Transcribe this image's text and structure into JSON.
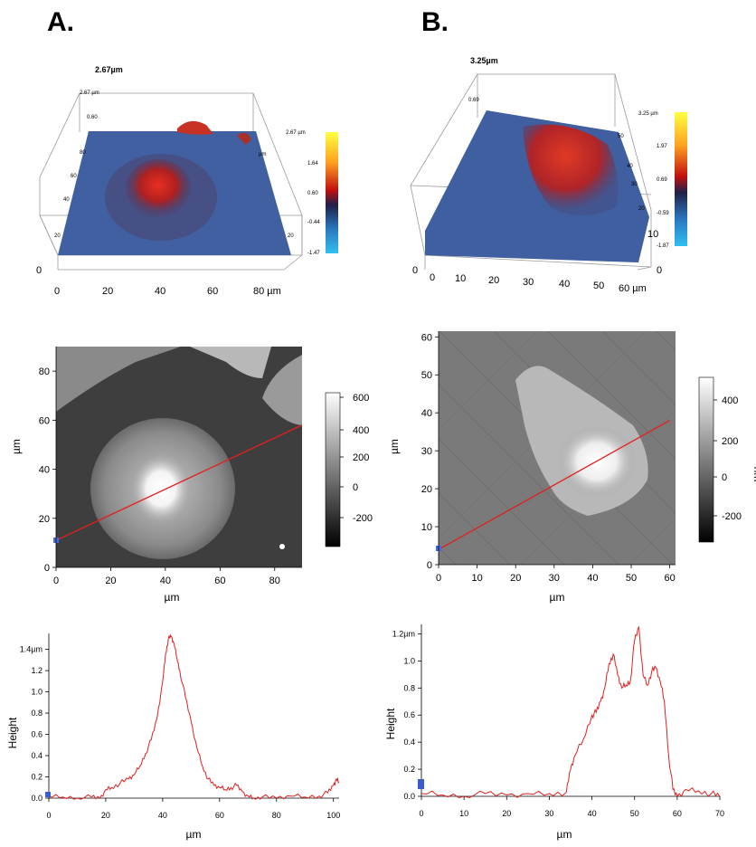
{
  "panels": {
    "A": {
      "letter": "A.",
      "surface3d": {
        "title": "2.67µm",
        "z_ticks": [
          "2.67 µm",
          "0.60"
        ],
        "y_ticks": [
          "20",
          "40",
          "60",
          "80"
        ],
        "x_ticks": [
          "0",
          "20",
          "40",
          "60",
          "80 µm"
        ],
        "origin_tick": "0",
        "side_ticks": [
          "20",
          "µm"
        ],
        "colorbar_ticks": [
          "2.67 µm",
          "1.64",
          "0.60",
          "-0.44",
          "-1.47"
        ]
      },
      "afm_map": {
        "ylabel": "µm",
        "xlabel": "µm",
        "x_ticks": [
          "0",
          "20",
          "40",
          "60",
          "80"
        ],
        "y_ticks": [
          "0",
          "20",
          "40",
          "60",
          "80"
        ],
        "colorbar_ticks": [
          "600",
          "400",
          "200",
          "0",
          "-200"
        ],
        "line_start": [
          0,
          11
        ],
        "line_end": [
          90,
          58
        ]
      },
      "profile": {
        "ylabel": "Height",
        "xlabel": "µm",
        "x_ticks": [
          "0",
          "20",
          "40",
          "60",
          "80",
          "100"
        ],
        "y_ticks": [
          "0.0",
          "0.2",
          "0.4",
          "0.6",
          "0.8",
          "1.0",
          "1.2",
          "1.4µm"
        ]
      }
    },
    "B": {
      "letter": "B.",
      "surface3d": {
        "title": "3.25µm",
        "z_ticks": [
          "0.69"
        ],
        "y_ticks": [
          "10",
          "20",
          "30",
          "40",
          "50"
        ],
        "x_ticks": [
          "0",
          "10",
          "20",
          "30",
          "40",
          "50",
          "60 µm"
        ],
        "origin_tick": "0",
        "side_ticks": [
          "10",
          "0"
        ],
        "colorbar_ticks": [
          "3.25 µm",
          "1.97",
          "0.69",
          "-0.59",
          "-1.87"
        ]
      },
      "afm_map": {
        "ylabel": "µm",
        "xlabel": "µm",
        "cb_label": "nm",
        "x_ticks": [
          "0",
          "10",
          "20",
          "30",
          "40",
          "50",
          "60"
        ],
        "y_ticks": [
          "0",
          "10",
          "20",
          "30",
          "40",
          "50",
          "60"
        ],
        "colorbar_ticks": [
          "400",
          "200",
          "0",
          "-200"
        ],
        "line_start": [
          0,
          4
        ],
        "line_end": [
          60,
          38
        ]
      },
      "profile": {
        "ylabel": "Height",
        "xlabel": "µm",
        "x_ticks": [
          "0",
          "10",
          "20",
          "30",
          "40",
          "50",
          "60",
          "70"
        ],
        "y_ticks": [
          "0.0",
          "0.2",
          "0.4",
          "0.6",
          "0.8",
          "1.0",
          "1.2µm"
        ]
      }
    }
  },
  "colors": {
    "profile_line": "#e02020",
    "scan_line": "#e02020",
    "surface_blue": "#3b5a9a",
    "cell_red": "#d42a22"
  },
  "chart_data": [
    {
      "type": "line",
      "xlabel": "µm",
      "ylabel": "Height",
      "xlim": [
        0,
        102
      ],
      "ylim": [
        0,
        1.55
      ],
      "series": [
        {
          "x": [
            0,
            5,
            10,
            15,
            18,
            20,
            22,
            25,
            28,
            30,
            32,
            34,
            36,
            38,
            40,
            41,
            42,
            43,
            44,
            45,
            46,
            48,
            50,
            52,
            54,
            56,
            58,
            60,
            62,
            64,
            66,
            68,
            70,
            72,
            75,
            80,
            85,
            90,
            95,
            98,
            100,
            101,
            102
          ],
          "y": [
            0.01,
            0.01,
            0.0,
            0.01,
            0.0,
            0.08,
            0.1,
            0.14,
            0.18,
            0.22,
            0.3,
            0.42,
            0.55,
            0.75,
            1.1,
            1.35,
            1.5,
            1.52,
            1.45,
            1.32,
            1.2,
            0.95,
            0.72,
            0.48,
            0.3,
            0.18,
            0.12,
            0.1,
            0.08,
            0.1,
            0.12,
            0.06,
            0.02,
            0.0,
            0.01,
            0.0,
            0.02,
            0.01,
            0.02,
            0.05,
            0.12,
            0.18,
            0.15
          ]
        }
      ]
    },
    {
      "type": "line",
      "xlabel": "µm",
      "ylabel": "Height",
      "xlim": [
        0,
        70
      ],
      "ylim": [
        0,
        1.27
      ],
      "series": [
        {
          "x": [
            0,
            5,
            10,
            15,
            20,
            25,
            30,
            34,
            35,
            36,
            38,
            40,
            41,
            42,
            43,
            44,
            45,
            46,
            47,
            48,
            49,
            50,
            51,
            52,
            53,
            54,
            55,
            56,
            57,
            58,
            59,
            60,
            62,
            65,
            68,
            70
          ],
          "y": [
            0.02,
            0.01,
            0.0,
            0.02,
            0.01,
            0.02,
            0.02,
            0.03,
            0.2,
            0.3,
            0.42,
            0.6,
            0.62,
            0.7,
            0.8,
            0.98,
            1.05,
            0.9,
            0.8,
            0.82,
            0.85,
            1.15,
            1.25,
            0.9,
            0.82,
            0.92,
            0.95,
            0.85,
            0.7,
            0.3,
            0.05,
            0.0,
            0.05,
            0.04,
            0.02,
            0.0
          ]
        }
      ]
    }
  ]
}
